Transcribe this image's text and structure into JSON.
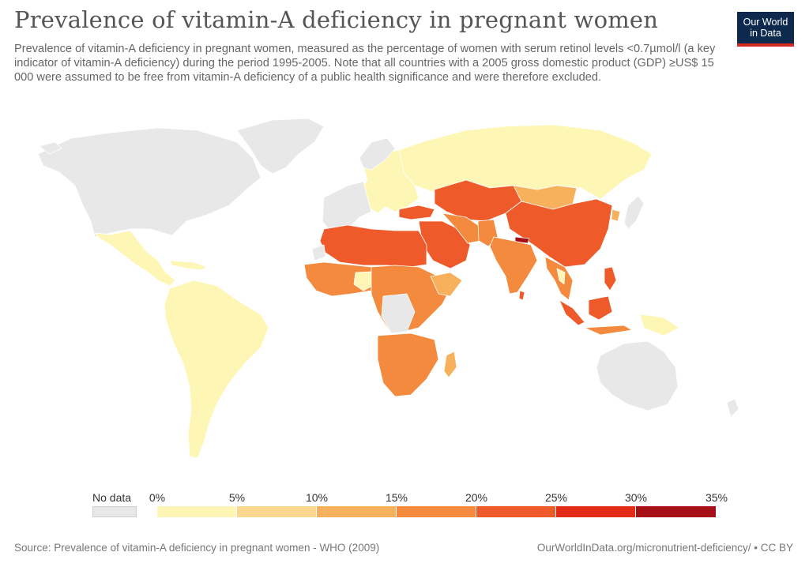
{
  "header": {
    "title": "Prevalence of vitamin-A deficiency in pregnant women",
    "subtitle": "Prevalence of vitamin-A deficiency in pregnant women, measured as the percentage of women with serum retinol levels <0.7µmol/l (a key indicator of vitamin-A deficiency) during the period 1995-2005. Note that all countries with a 2005 gross domestic product (GDP) ≥US$ 15 000 were assumed to be free from vitamin-A deficiency of a public health significance and were therefore excluded.",
    "logo_line1": "Our World",
    "logo_line2": "in Data"
  },
  "colors": {
    "no_data": "#e8e8e8",
    "bins": [
      "#fdf6b5",
      "#fbd78f",
      "#f7b05c",
      "#f38a3d",
      "#ee5a2a",
      "#e12c1a",
      "#c31216",
      "#a50f15"
    ],
    "brand_navy": "#0d2a4e",
    "brand_red": "#d42b21"
  },
  "legend": {
    "no_data_label": "No data",
    "ticks": [
      "0%",
      "5%",
      "10%",
      "15%",
      "20%",
      "25%",
      "30%",
      "35%"
    ]
  },
  "footer": {
    "source": "Source: Prevalence of vitamin-A deficiency in pregnant women - WHO (2009)",
    "url": "OurWorldInData.org/micronutrient-deficiency/ • CC BY"
  }
}
